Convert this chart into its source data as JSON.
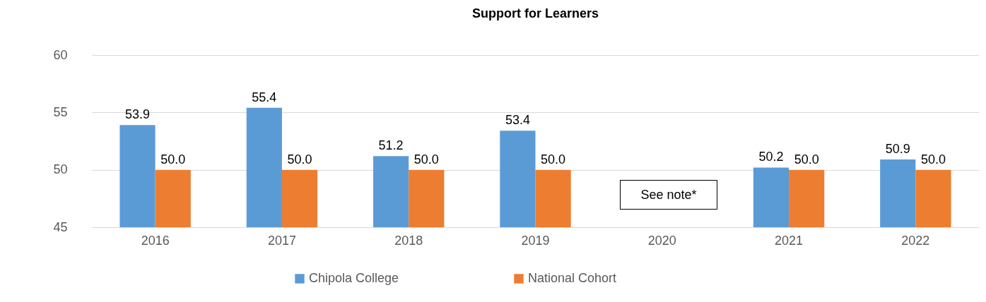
{
  "chart_data": {
    "type": "bar",
    "title": "Support for Learners",
    "categories": [
      "2016",
      "2017",
      "2018",
      "2019",
      "2020",
      "2021",
      "2022"
    ],
    "series": [
      {
        "name": "Chipola College",
        "color": "#5b9bd5",
        "values": [
          53.9,
          55.4,
          51.2,
          53.4,
          null,
          50.2,
          50.9
        ],
        "value_labels": [
          "53.9",
          "55.4",
          "51.2",
          "53.4",
          null,
          "50.2",
          "50.9"
        ]
      },
      {
        "name": "National Cohort",
        "color": "#ed7d31",
        "values": [
          50.0,
          50.0,
          50.0,
          50.0,
          null,
          50.0,
          50.0
        ],
        "value_labels": [
          "50.0",
          "50.0",
          "50.0",
          "50.0",
          null,
          "50.0",
          "50.0"
        ]
      }
    ],
    "ylim": [
      45,
      60
    ],
    "yticks": [
      45,
      50,
      55,
      60
    ],
    "grid": "y",
    "legend": "bottom",
    "annotations": [
      "See note*"
    ]
  }
}
